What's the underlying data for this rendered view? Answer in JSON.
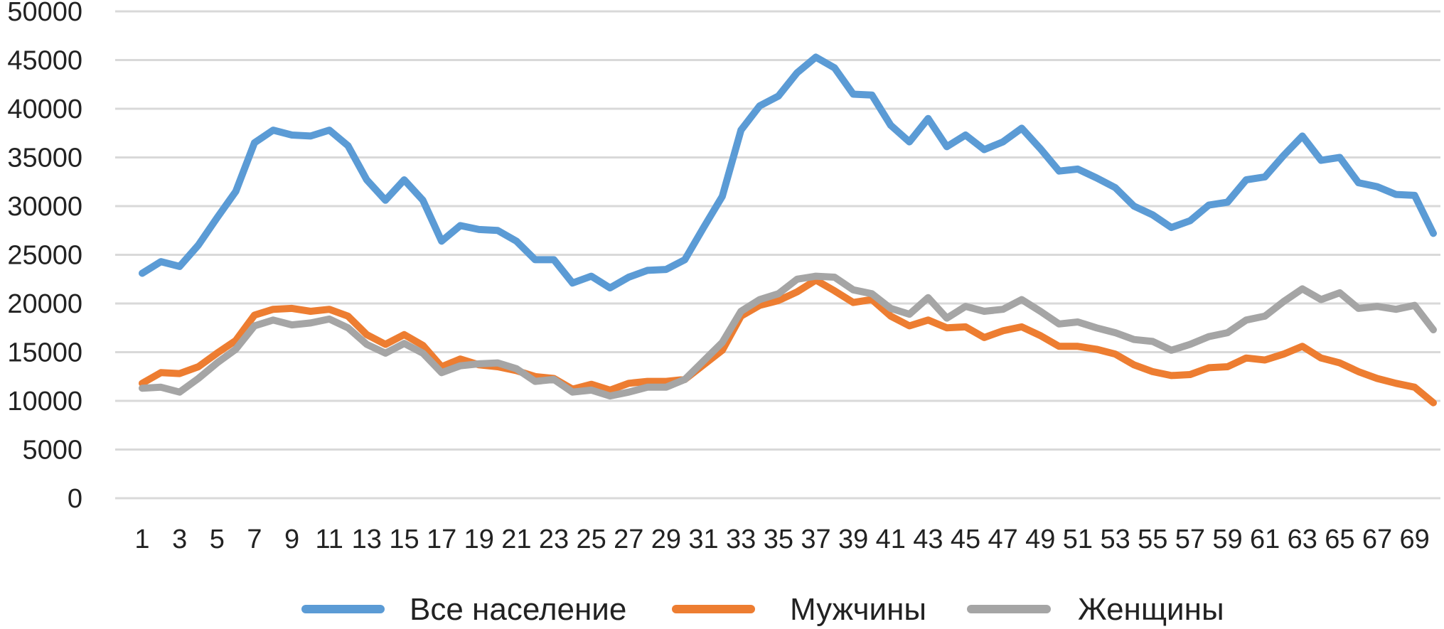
{
  "chart_data": {
    "type": "line",
    "title": "",
    "xlabel": "",
    "ylabel": "",
    "ylim": [
      0,
      50000
    ],
    "y_ticks": [
      "0",
      "5000",
      "10000",
      "15000",
      "20000",
      "25000",
      "30000",
      "35000",
      "40000",
      "45000",
      "50000"
    ],
    "x_tick_labels": [
      "1",
      "3",
      "5",
      "7",
      "9",
      "11",
      "13",
      "15",
      "17",
      "19",
      "21",
      "23",
      "25",
      "27",
      "29",
      "31",
      "33",
      "35",
      "37",
      "39",
      "41",
      "43",
      "45",
      "47",
      "49",
      "51",
      "53",
      "55",
      "57",
      "59",
      "61",
      "63",
      "65",
      "67",
      "69"
    ],
    "x": [
      1,
      2,
      3,
      4,
      5,
      6,
      7,
      8,
      9,
      10,
      11,
      12,
      13,
      14,
      15,
      16,
      17,
      18,
      19,
      20,
      21,
      22,
      23,
      24,
      25,
      26,
      27,
      28,
      29,
      30,
      31,
      32,
      33,
      34,
      35,
      36,
      37,
      38,
      39,
      40,
      41,
      42,
      43,
      44,
      45,
      46,
      47,
      48,
      49,
      50,
      51,
      52,
      53,
      54,
      55,
      56,
      57,
      58,
      59,
      60,
      61,
      62,
      63,
      64,
      65,
      66,
      67,
      68,
      69,
      70
    ],
    "grid": true,
    "legend_position": "bottom",
    "series": [
      {
        "name": "Все население",
        "color": "#5b9bd5",
        "values": [
          23100,
          24300,
          23800,
          26000,
          28800,
          31500,
          36500,
          37800,
          37300,
          37200,
          37800,
          36200,
          32700,
          30600,
          32700,
          30600,
          26400,
          28000,
          27600,
          27500,
          26400,
          24500,
          24500,
          22100,
          22800,
          21600,
          22700,
          23400,
          23500,
          24500,
          27800,
          31000,
          37800,
          40300,
          41300,
          43700,
          45300,
          44200,
          41500,
          41400,
          38300,
          36600,
          39000,
          36100,
          37300,
          35800,
          36600,
          38000,
          35900,
          33600,
          33800,
          32900,
          31900,
          30000,
          29100,
          27800,
          28500,
          30100,
          30400,
          32700,
          33000,
          35200,
          37200,
          34700,
          35000,
          32400,
          32000,
          31200,
          31100,
          27200
        ]
      },
      {
        "name": "Мужчины",
        "color": "#ed7d31",
        "values": [
          11800,
          12900,
          12800,
          13500,
          14900,
          16200,
          18800,
          19400,
          19500,
          19200,
          19400,
          18700,
          16800,
          15800,
          16800,
          15700,
          13500,
          14300,
          13700,
          13500,
          13100,
          12500,
          12300,
          11200,
          11700,
          11100,
          11800,
          12000,
          12000,
          12200,
          13700,
          15200,
          18700,
          19800,
          20300,
          21200,
          22400,
          21300,
          20100,
          20400,
          18700,
          17700,
          18300,
          17500,
          17600,
          16500,
          17200,
          17600,
          16700,
          15600,
          15600,
          15300,
          14800,
          13700,
          13000,
          12600,
          12700,
          13400,
          13500,
          14400,
          14200,
          14800,
          15600,
          14400,
          13900,
          13000,
          12300,
          11800,
          11400,
          9800
        ]
      },
      {
        "name": "Женщины",
        "color": "#a5a5a5",
        "values": [
          11300,
          11400,
          10900,
          12300,
          13900,
          15300,
          17700,
          18300,
          17800,
          18000,
          18400,
          17500,
          15800,
          14900,
          15900,
          14900,
          12900,
          13600,
          13800,
          13900,
          13300,
          12000,
          12200,
          10900,
          11100,
          10500,
          10900,
          11400,
          11400,
          12200,
          14100,
          16000,
          19200,
          20400,
          21000,
          22500,
          22800,
          22700,
          21400,
          21000,
          19500,
          18900,
          20600,
          18500,
          19700,
          19200,
          19400,
          20400,
          19200,
          17900,
          18100,
          17500,
          17000,
          16300,
          16100,
          15200,
          15800,
          16600,
          17000,
          18300,
          18700,
          20200,
          21500,
          20400,
          21100,
          19500,
          19700,
          19400,
          19800,
          17300
        ]
      }
    ]
  }
}
